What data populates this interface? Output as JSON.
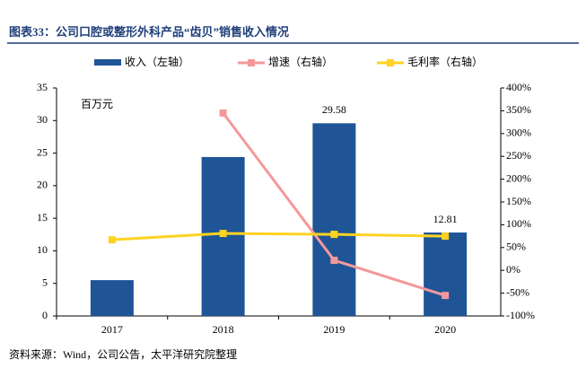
{
  "chart_data": {
    "type": "bar",
    "title": "图表33：公司口腔或整形外科产品“齿贝”销售收入情况",
    "y_label": "百万元",
    "source": "资料来源：Wind，公司公告，太平洋研究院整理",
    "categories": [
      "2017",
      "2018",
      "2019",
      "2020"
    ],
    "series": [
      {
        "name": "收入（左轴）",
        "type": "bar",
        "color": "#1f5597",
        "values": [
          5.5,
          24.4,
          29.58,
          12.81
        ],
        "value_labels": [
          null,
          null,
          "29.58",
          "12.81"
        ]
      },
      {
        "name": "增速（右轴）",
        "type": "line",
        "axis": "y2",
        "color": "#f4989b",
        "values": [
          null,
          345,
          22,
          -55
        ]
      },
      {
        "name": "毛利率（右轴）",
        "type": "line",
        "axis": "y2",
        "color": "#ffd320",
        "values": [
          67,
          81,
          79,
          75
        ]
      }
    ],
    "ylim": [
      0,
      35
    ],
    "yticks": [
      0,
      5,
      10,
      15,
      20,
      25,
      30,
      35
    ],
    "y2lim": [
      -100,
      400
    ],
    "y2ticks": [
      {
        "value": -100,
        "label": "-100%"
      },
      {
        "value": -50,
        "label": "-50%"
      },
      {
        "value": 0,
        "label": "0%"
      },
      {
        "value": 50,
        "label": "50%"
      },
      {
        "value": 100,
        "label": "100%"
      },
      {
        "value": 150,
        "label": "150%"
      },
      {
        "value": 200,
        "label": "200%"
      },
      {
        "value": 250,
        "label": "250%"
      },
      {
        "value": 300,
        "label": "300%"
      },
      {
        "value": 350,
        "label": "350%"
      },
      {
        "value": 400,
        "label": "400%"
      }
    ],
    "grid": false,
    "legend": "top"
  }
}
